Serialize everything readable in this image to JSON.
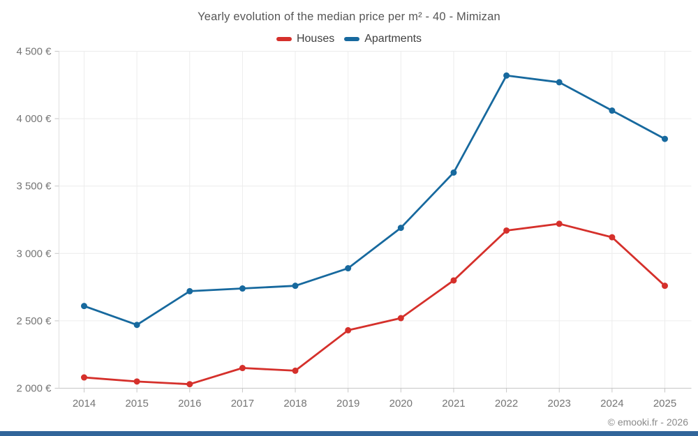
{
  "title": "Yearly evolution of the median price per m² - 40 - Mimizan",
  "legend": {
    "items": [
      {
        "label": "Houses",
        "color": "#d5302b"
      },
      {
        "label": "Apartments",
        "color": "#17699e"
      }
    ]
  },
  "footer": {
    "credit": "© emooki.fr - 2026",
    "bar_color": "#31659a"
  },
  "colors": {
    "houses": "#d5302b",
    "apartments": "#17699e",
    "grid": "#ececec",
    "axis": "#c6c6c6",
    "tick_label": "#757575",
    "title_text": "#565656"
  },
  "chart_data": {
    "type": "line",
    "title": "Yearly evolution of the median price per m² - 40 - Mimizan",
    "x": [
      2014,
      2015,
      2016,
      2017,
      2018,
      2019,
      2020,
      2021,
      2022,
      2023,
      2024,
      2025
    ],
    "series": [
      {
        "name": "Houses",
        "color": "#d5302b",
        "values": [
          2080,
          2050,
          2030,
          2150,
          2130,
          2430,
          2520,
          2800,
          3170,
          3220,
          3120,
          2760
        ]
      },
      {
        "name": "Apartments",
        "color": "#17699e",
        "values": [
          2610,
          2470,
          2720,
          2740,
          2760,
          2890,
          3190,
          3600,
          4320,
          4270,
          4060,
          3850
        ]
      }
    ],
    "xlabel": "",
    "ylabel": "",
    "ylim": [
      2000,
      4500
    ],
    "yticks": [
      2000,
      2500,
      3000,
      3500,
      4000,
      4500
    ],
    "ytick_labels": [
      "2 000 €",
      "2 500 €",
      "3 000 €",
      "3 500 €",
      "4 000 €",
      "4 500 €"
    ],
    "grid": true,
    "legend_position": "top",
    "marker": "circle"
  }
}
